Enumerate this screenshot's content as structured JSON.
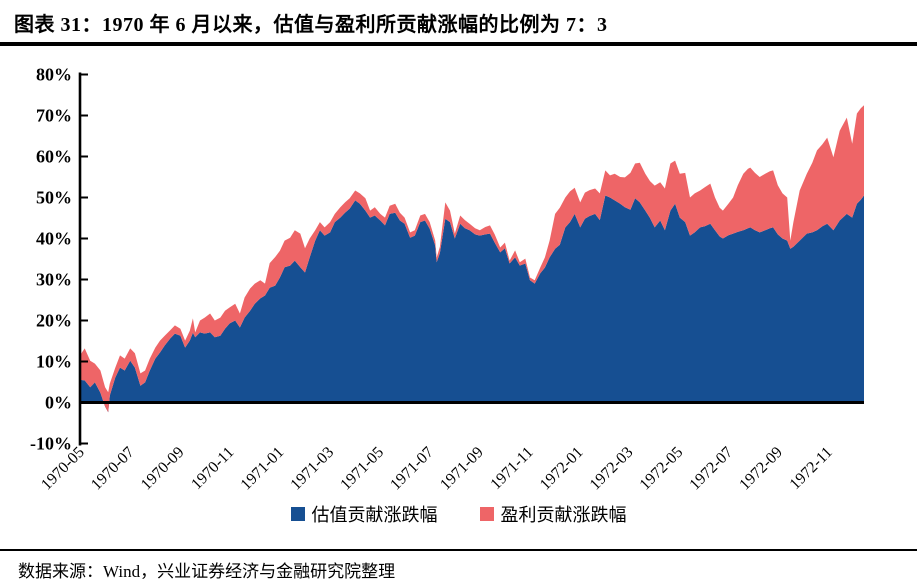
{
  "title": "图表 31：1970 年 6 月以来，估值与盈利所贡献涨幅的比例为 7：3",
  "footer": {
    "source_text": "数据来源：Wind，兴业证券经济与金融研究院整理"
  },
  "legend": {
    "items": [
      {
        "label": "估值贡献涨跌幅",
        "color": "#164f92"
      },
      {
        "label": "盈利贡献涨跌幅",
        "color": "#ee6567"
      }
    ]
  },
  "chart_data": {
    "type": "area",
    "stacked": true,
    "grid": false,
    "legend_position": "bottom",
    "title": "1970 年 6 月以来，估值与盈利所贡献涨幅的比例为 7：3",
    "xlabel": "",
    "ylabel": "",
    "y_axis": {
      "min": -10,
      "max": 80,
      "unit": "%",
      "tick_labels": [
        "80%",
        "70%",
        "60%",
        "50%",
        "40%",
        "30%",
        "20%",
        "10%",
        "0%",
        "-10%"
      ]
    },
    "x_axis": {
      "rotation_deg": -45,
      "tick_labels": [
        "1970-05",
        "1970-07",
        "1970-09",
        "1970-11",
        "1971-01",
        "1971-03",
        "1971-05",
        "1971-07",
        "1971-09",
        "1971-11",
        "1972-01",
        "1972-03",
        "1972-05",
        "1972-07",
        "1972-09",
        "1972-11"
      ]
    },
    "zero_line": true,
    "series_meta": [
      {
        "name": "估值贡献涨跌幅",
        "color": "#164f92",
        "role": "valuation_contribution"
      },
      {
        "name": "盈利贡献涨跌幅",
        "color": "#ee6567",
        "role": "earnings_contribution"
      }
    ],
    "points_format": [
      "x_fraction_of_timeline",
      "valuation_contribution_pct",
      "total_contribution_pct"
    ],
    "points": [
      [
        0.0,
        5.5,
        11.5
      ],
      [
        0.006,
        5.4,
        13.2
      ],
      [
        0.013,
        3.7,
        10.2
      ],
      [
        0.019,
        4.9,
        9.5
      ],
      [
        0.026,
        2.4,
        7.8
      ],
      [
        0.032,
        -1.0,
        3.7
      ],
      [
        0.036,
        -2.4,
        2.5
      ],
      [
        0.038,
        1.7,
        4.6
      ],
      [
        0.045,
        6.1,
        8.5
      ],
      [
        0.051,
        8.5,
        11.5
      ],
      [
        0.057,
        7.8,
        10.7
      ],
      [
        0.064,
        10.2,
        13.2
      ],
      [
        0.07,
        8.5,
        12.0
      ],
      [
        0.077,
        4.1,
        7.1
      ],
      [
        0.083,
        4.9,
        7.8
      ],
      [
        0.089,
        7.8,
        10.7
      ],
      [
        0.096,
        10.7,
        13.4
      ],
      [
        0.102,
        12.2,
        15.1
      ],
      [
        0.108,
        13.9,
        16.3
      ],
      [
        0.115,
        15.6,
        17.6
      ],
      [
        0.121,
        16.8,
        18.8
      ],
      [
        0.128,
        16.3,
        18.0
      ],
      [
        0.134,
        13.4,
        15.1
      ],
      [
        0.14,
        15.1,
        17.5
      ],
      [
        0.144,
        17.0,
        20.5
      ],
      [
        0.147,
        15.9,
        17.1
      ],
      [
        0.153,
        17.1,
        20.0
      ],
      [
        0.159,
        16.8,
        20.7
      ],
      [
        0.166,
        17.1,
        21.7
      ],
      [
        0.172,
        15.9,
        20.0
      ],
      [
        0.179,
        16.3,
        20.7
      ],
      [
        0.185,
        18.0,
        22.4
      ],
      [
        0.191,
        19.3,
        23.2
      ],
      [
        0.198,
        20.0,
        24.1
      ],
      [
        0.204,
        18.3,
        21.7
      ],
      [
        0.21,
        20.7,
        25.6
      ],
      [
        0.217,
        22.4,
        27.8
      ],
      [
        0.223,
        24.1,
        29.0
      ],
      [
        0.23,
        25.4,
        29.8
      ],
      [
        0.236,
        26.1,
        29.0
      ],
      [
        0.242,
        28.0,
        34.0
      ],
      [
        0.249,
        28.5,
        35.5
      ],
      [
        0.255,
        30.5,
        37.0
      ],
      [
        0.261,
        33.0,
        39.5
      ],
      [
        0.268,
        33.4,
        40.2
      ],
      [
        0.274,
        34.6,
        42.0
      ],
      [
        0.281,
        33.0,
        41.2
      ],
      [
        0.287,
        31.7,
        37.6
      ],
      [
        0.293,
        35.4,
        40.0
      ],
      [
        0.3,
        39.5,
        42.0
      ],
      [
        0.306,
        42.0,
        44.0
      ],
      [
        0.312,
        40.7,
        42.7
      ],
      [
        0.319,
        41.5,
        44.0
      ],
      [
        0.325,
        44.0,
        46.0
      ],
      [
        0.332,
        45.1,
        47.6
      ],
      [
        0.338,
        46.3,
        48.8
      ],
      [
        0.344,
        47.3,
        49.8
      ],
      [
        0.351,
        49.3,
        51.7
      ],
      [
        0.357,
        48.5,
        51.0
      ],
      [
        0.364,
        46.8,
        49.8
      ],
      [
        0.37,
        45.1,
        46.8
      ],
      [
        0.376,
        45.6,
        47.6
      ],
      [
        0.383,
        44.4,
        46.0
      ],
      [
        0.389,
        43.2,
        45.1
      ],
      [
        0.395,
        46.0,
        48.0
      ],
      [
        0.402,
        46.3,
        48.5
      ],
      [
        0.408,
        44.4,
        46.3
      ],
      [
        0.414,
        43.6,
        45.1
      ],
      [
        0.421,
        40.2,
        41.5
      ],
      [
        0.427,
        40.7,
        42.0
      ],
      [
        0.434,
        44.0,
        45.6
      ],
      [
        0.44,
        44.4,
        46.0
      ],
      [
        0.446,
        42.4,
        44.0
      ],
      [
        0.453,
        38.3,
        39.5
      ],
      [
        0.455,
        34.2,
        35.4
      ],
      [
        0.459,
        36.5,
        38.0
      ],
      [
        0.466,
        44.8,
        48.8
      ],
      [
        0.472,
        44.0,
        46.8
      ],
      [
        0.478,
        40.0,
        41.2
      ],
      [
        0.485,
        43.6,
        45.6
      ],
      [
        0.491,
        42.5,
        44.5
      ],
      [
        0.497,
        42.0,
        43.6
      ],
      [
        0.504,
        41.0,
        42.5
      ],
      [
        0.51,
        40.7,
        42.0
      ],
      [
        0.517,
        41.0,
        42.8
      ],
      [
        0.523,
        41.2,
        43.2
      ],
      [
        0.529,
        39.0,
        41.0
      ],
      [
        0.536,
        36.6,
        37.8
      ],
      [
        0.542,
        37.6,
        39.0
      ],
      [
        0.548,
        33.9,
        34.6
      ],
      [
        0.555,
        35.4,
        37.1
      ],
      [
        0.561,
        33.4,
        34.2
      ],
      [
        0.568,
        33.9,
        35.1
      ],
      [
        0.574,
        29.8,
        30.5
      ],
      [
        0.58,
        29.0,
        29.8
      ],
      [
        0.587,
        31.5,
        32.9
      ],
      [
        0.593,
        32.9,
        35.4
      ],
      [
        0.599,
        35.4,
        39.5
      ],
      [
        0.606,
        37.5,
        46.0
      ],
      [
        0.612,
        38.5,
        47.5
      ],
      [
        0.619,
        42.7,
        50.0
      ],
      [
        0.625,
        44.0,
        51.5
      ],
      [
        0.631,
        46.0,
        52.4
      ],
      [
        0.638,
        42.7,
        48.8
      ],
      [
        0.644,
        44.8,
        51.2
      ],
      [
        0.65,
        45.5,
        51.8
      ],
      [
        0.657,
        46.0,
        52.2
      ],
      [
        0.663,
        44.5,
        51.0
      ],
      [
        0.67,
        50.5,
        56.6
      ],
      [
        0.676,
        50.0,
        55.4
      ],
      [
        0.682,
        49.3,
        55.8
      ],
      [
        0.689,
        48.5,
        55.0
      ],
      [
        0.695,
        47.6,
        54.9
      ],
      [
        0.702,
        47.0,
        56.0
      ],
      [
        0.708,
        49.8,
        58.3
      ],
      [
        0.714,
        48.8,
        58.5
      ],
      [
        0.721,
        46.8,
        55.8
      ],
      [
        0.727,
        45.0,
        54.0
      ],
      [
        0.733,
        42.7,
        52.9
      ],
      [
        0.74,
        44.4,
        53.7
      ],
      [
        0.746,
        42.0,
        52.2
      ],
      [
        0.753,
        46.8,
        58.3
      ],
      [
        0.759,
        48.5,
        59.0
      ],
      [
        0.765,
        45.1,
        55.8
      ],
      [
        0.772,
        44.0,
        56.0
      ],
      [
        0.778,
        40.7,
        50.0
      ],
      [
        0.784,
        41.5,
        51.0
      ],
      [
        0.791,
        42.7,
        51.7
      ],
      [
        0.797,
        43.0,
        52.5
      ],
      [
        0.804,
        43.6,
        53.4
      ],
      [
        0.81,
        42.0,
        50.0
      ],
      [
        0.816,
        40.5,
        47.5
      ],
      [
        0.82,
        40.0,
        46.8
      ],
      [
        0.827,
        40.8,
        48.5
      ],
      [
        0.833,
        41.2,
        50.0
      ],
      [
        0.839,
        41.6,
        53.0
      ],
      [
        0.846,
        42.0,
        55.8
      ],
      [
        0.852,
        42.5,
        57.0
      ],
      [
        0.855,
        42.7,
        57.3
      ],
      [
        0.861,
        42.0,
        56.0
      ],
      [
        0.867,
        41.5,
        55.0
      ],
      [
        0.874,
        42.0,
        55.8
      ],
      [
        0.88,
        42.5,
        56.4
      ],
      [
        0.884,
        42.7,
        56.6
      ],
      [
        0.89,
        41.0,
        53.0
      ],
      [
        0.896,
        40.0,
        51.0
      ],
      [
        0.902,
        39.5,
        50.0
      ],
      [
        0.906,
        37.5,
        39.5
      ],
      [
        0.91,
        38.0,
        44.0
      ],
      [
        0.918,
        39.5,
        51.7
      ],
      [
        0.927,
        41.2,
        55.8
      ],
      [
        0.934,
        41.5,
        58.5
      ],
      [
        0.94,
        42.0,
        61.5
      ],
      [
        0.947,
        43.0,
        63.0
      ],
      [
        0.953,
        43.6,
        64.6
      ],
      [
        0.961,
        42.0,
        59.8
      ],
      [
        0.969,
        44.4,
        66.3
      ],
      [
        0.978,
        46.0,
        69.5
      ],
      [
        0.985,
        45.1,
        63.1
      ],
      [
        0.991,
        48.5,
        70.5
      ],
      [
        0.996,
        49.5,
        71.8
      ],
      [
        1.0,
        50.5,
        72.5
      ]
    ]
  }
}
